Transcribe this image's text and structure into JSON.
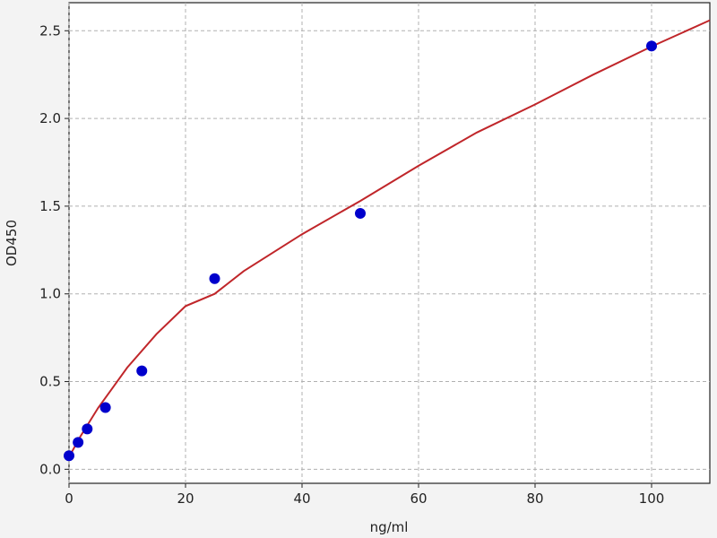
{
  "chart_data": {
    "type": "scatter",
    "title": "",
    "xlabel": "ng/ml",
    "ylabel": "OD450",
    "xlim": [
      0,
      110
    ],
    "ylim": [
      -0.08,
      2.66
    ],
    "xticks": [
      0,
      20,
      40,
      60,
      80,
      100
    ],
    "yticks": [
      0.0,
      0.5,
      1.0,
      1.5,
      2.0,
      2.5
    ],
    "xtick_labels": [
      "0",
      "20",
      "40",
      "60",
      "80",
      "100"
    ],
    "ytick_labels": [
      "0.0",
      "0.5",
      "1.0",
      "1.5",
      "2.0",
      "2.5"
    ],
    "grid": true,
    "points": {
      "x": [
        0,
        1.5625,
        3.125,
        6.25,
        12.5,
        25,
        50,
        100
      ],
      "y": [
        0.077,
        0.153,
        0.23,
        0.352,
        0.561,
        1.087,
        1.459,
        2.413
      ],
      "color": "#0000cc"
    },
    "fit_curve": {
      "x": [
        0,
        2,
        5,
        10,
        15,
        20,
        25,
        30,
        40,
        50,
        60,
        70,
        80,
        90,
        100,
        110
      ],
      "y": [
        0.07,
        0.19,
        0.35,
        0.58,
        0.77,
        0.93,
        1.0,
        1.13,
        1.34,
        1.53,
        1.73,
        1.92,
        2.08,
        2.25,
        2.41,
        2.56
      ],
      "color": "#c0262a"
    }
  }
}
